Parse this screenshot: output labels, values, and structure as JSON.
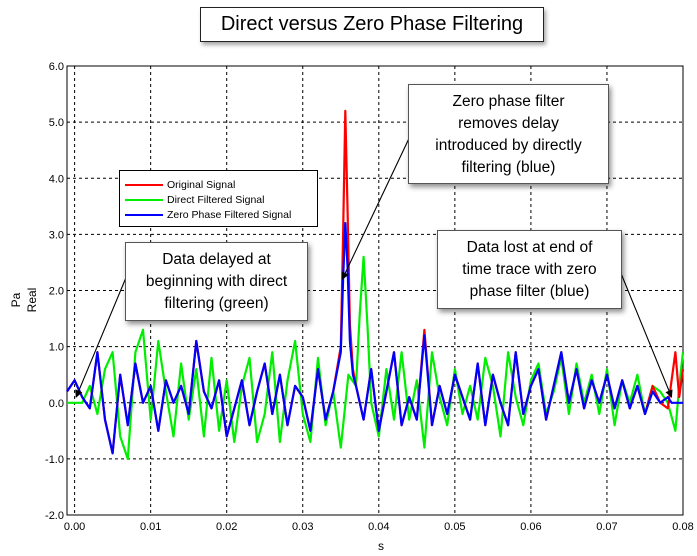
{
  "title": "Direct versus Zero Phase Filtering",
  "chart_data": {
    "type": "line",
    "xlabel": "s",
    "ylabel": [
      "Pa",
      "Real"
    ],
    "xlim": [
      -0.001,
      0.08
    ],
    "ylim": [
      -2.0,
      6.0
    ],
    "x_ticks": [
      "0.00",
      "0.01",
      "0.02",
      "0.03",
      "0.04",
      "0.05",
      "0.06",
      "0.07",
      "0.08"
    ],
    "y_ticks": [
      "-2.0",
      "-1.0",
      "0.0",
      "1.0",
      "2.0",
      "3.0",
      "4.0",
      "5.0",
      "6.0"
    ],
    "grid": true,
    "legend_position": "upper-left",
    "series": [
      {
        "name": "Original Signal",
        "color": "#ff0000",
        "points": [
          [
            -0.001,
            0.2
          ],
          [
            0.0,
            0.4
          ],
          [
            0.001,
            0.1
          ],
          [
            0.002,
            -0.1
          ],
          [
            0.003,
            0.9
          ],
          [
            0.004,
            -0.3
          ],
          [
            0.005,
            -0.9
          ],
          [
            0.006,
            0.5
          ],
          [
            0.007,
            -0.4
          ],
          [
            0.008,
            0.7
          ],
          [
            0.009,
            0.0
          ],
          [
            0.01,
            0.3
          ],
          [
            0.011,
            -0.5
          ],
          [
            0.012,
            0.4
          ],
          [
            0.013,
            0.0
          ],
          [
            0.014,
            0.3
          ],
          [
            0.015,
            -0.2
          ],
          [
            0.016,
            1.1
          ],
          [
            0.017,
            0.2
          ],
          [
            0.018,
            -0.1
          ],
          [
            0.019,
            0.4
          ],
          [
            0.02,
            -0.6
          ],
          [
            0.021,
            -0.1
          ],
          [
            0.022,
            0.4
          ],
          [
            0.023,
            -0.4
          ],
          [
            0.024,
            0.2
          ],
          [
            0.025,
            0.7
          ],
          [
            0.026,
            -0.2
          ],
          [
            0.027,
            0.5
          ],
          [
            0.028,
            -0.4
          ],
          [
            0.029,
            0.3
          ],
          [
            0.03,
            0.1
          ],
          [
            0.031,
            -0.5
          ],
          [
            0.032,
            0.6
          ],
          [
            0.033,
            -0.3
          ],
          [
            0.034,
            0.2
          ],
          [
            0.035,
            1.0
          ],
          [
            0.0353,
            3.0
          ],
          [
            0.0356,
            5.2
          ],
          [
            0.0359,
            3.4
          ],
          [
            0.0362,
            1.4
          ],
          [
            0.0366,
            0.6
          ],
          [
            0.037,
            0.3
          ],
          [
            0.038,
            -0.3
          ],
          [
            0.039,
            0.6
          ],
          [
            0.04,
            -0.5
          ],
          [
            0.041,
            0.2
          ],
          [
            0.042,
            0.9
          ],
          [
            0.043,
            -0.4
          ],
          [
            0.044,
            0.1
          ],
          [
            0.045,
            -0.3
          ],
          [
            0.046,
            1.3
          ],
          [
            0.047,
            -0.4
          ],
          [
            0.048,
            0.3
          ],
          [
            0.049,
            -0.2
          ],
          [
            0.05,
            0.5
          ],
          [
            0.051,
            0.1
          ],
          [
            0.052,
            -0.3
          ],
          [
            0.053,
            0.7
          ],
          [
            0.054,
            -0.4
          ],
          [
            0.055,
            0.5
          ],
          [
            0.056,
            0.0
          ],
          [
            0.057,
            -0.4
          ],
          [
            0.058,
            0.9
          ],
          [
            0.059,
            -0.2
          ],
          [
            0.06,
            0.3
          ],
          [
            0.061,
            0.6
          ],
          [
            0.062,
            -0.3
          ],
          [
            0.063,
            0.3
          ],
          [
            0.064,
            0.9
          ],
          [
            0.065,
            0.0
          ],
          [
            0.066,
            0.6
          ],
          [
            0.067,
            -0.1
          ],
          [
            0.068,
            0.4
          ],
          [
            0.069,
            0.0
          ],
          [
            0.07,
            0.5
          ],
          [
            0.071,
            -0.1
          ],
          [
            0.072,
            0.4
          ],
          [
            0.073,
            -0.1
          ],
          [
            0.074,
            0.3
          ],
          [
            0.075,
            -0.2
          ],
          [
            0.076,
            0.3
          ],
          [
            0.077,
            0.0
          ],
          [
            0.078,
            -0.1
          ],
          [
            0.079,
            0.9
          ],
          [
            0.0795,
            0.1
          ],
          [
            0.08,
            0.6
          ]
        ]
      },
      {
        "name": "Direct Filtered Signal",
        "color": "#00ee00",
        "points": [
          [
            -0.001,
            0.0
          ],
          [
            0.0,
            0.0
          ],
          [
            0.001,
            0.0
          ],
          [
            0.002,
            0.3
          ],
          [
            0.003,
            -0.2
          ],
          [
            0.004,
            0.6
          ],
          [
            0.005,
            0.9
          ],
          [
            0.006,
            -0.6
          ],
          [
            0.007,
            -1.0
          ],
          [
            0.008,
            0.9
          ],
          [
            0.009,
            1.3
          ],
          [
            0.01,
            -0.3
          ],
          [
            0.011,
            1.1
          ],
          [
            0.012,
            0.2
          ],
          [
            0.013,
            -0.6
          ],
          [
            0.014,
            0.7
          ],
          [
            0.015,
            -0.3
          ],
          [
            0.016,
            0.6
          ],
          [
            0.017,
            -0.6
          ],
          [
            0.018,
            0.8
          ],
          [
            0.019,
            -0.5
          ],
          [
            0.02,
            0.4
          ],
          [
            0.021,
            -0.7
          ],
          [
            0.022,
            0.3
          ],
          [
            0.023,
            0.8
          ],
          [
            0.024,
            -0.7
          ],
          [
            0.025,
            -0.2
          ],
          [
            0.026,
            0.9
          ],
          [
            0.027,
            -0.7
          ],
          [
            0.028,
            0.4
          ],
          [
            0.029,
            1.1
          ],
          [
            0.03,
            -0.2
          ],
          [
            0.031,
            -0.7
          ],
          [
            0.032,
            0.8
          ],
          [
            0.033,
            -0.4
          ],
          [
            0.034,
            0.2
          ],
          [
            0.035,
            -0.8
          ],
          [
            0.036,
            0.5
          ],
          [
            0.037,
            0.3
          ],
          [
            0.0375,
            1.6
          ],
          [
            0.038,
            2.6
          ],
          [
            0.0385,
            1.4
          ],
          [
            0.039,
            0.0
          ],
          [
            0.04,
            -0.6
          ],
          [
            0.041,
            0.6
          ],
          [
            0.042,
            -0.3
          ],
          [
            0.043,
            0.9
          ],
          [
            0.044,
            -0.3
          ],
          [
            0.045,
            0.4
          ],
          [
            0.046,
            -0.8
          ],
          [
            0.047,
            0.9
          ],
          [
            0.048,
            0.1
          ],
          [
            0.049,
            -0.4
          ],
          [
            0.05,
            0.6
          ],
          [
            0.051,
            -0.2
          ],
          [
            0.052,
            0.3
          ],
          [
            0.053,
            -0.3
          ],
          [
            0.054,
            0.8
          ],
          [
            0.055,
            0.3
          ],
          [
            0.056,
            -0.6
          ],
          [
            0.057,
            0.9
          ],
          [
            0.058,
            0.1
          ],
          [
            0.059,
            -0.4
          ],
          [
            0.06,
            0.4
          ],
          [
            0.061,
            0.7
          ],
          [
            0.062,
            -0.2
          ],
          [
            0.063,
            0.2
          ],
          [
            0.064,
            0.8
          ],
          [
            0.065,
            -0.2
          ],
          [
            0.066,
            0.7
          ],
          [
            0.067,
            0.0
          ],
          [
            0.068,
            0.5
          ],
          [
            0.069,
            -0.2
          ],
          [
            0.07,
            0.6
          ],
          [
            0.071,
            -0.4
          ],
          [
            0.072,
            0.4
          ],
          [
            0.073,
            0.0
          ],
          [
            0.074,
            0.5
          ],
          [
            0.075,
            -0.2
          ],
          [
            0.076,
            0.3
          ],
          [
            0.077,
            0.2
          ],
          [
            0.078,
            0.0
          ],
          [
            0.079,
            -0.5
          ],
          [
            0.0795,
            0.3
          ],
          [
            0.08,
            0.9
          ]
        ]
      },
      {
        "name": "Zero Phase Filtered Signal",
        "color": "#0000ff",
        "points": [
          [
            -0.001,
            0.2
          ],
          [
            0.0,
            0.4
          ],
          [
            0.001,
            0.1
          ],
          [
            0.002,
            -0.1
          ],
          [
            0.003,
            0.9
          ],
          [
            0.004,
            -0.3
          ],
          [
            0.005,
            -0.9
          ],
          [
            0.006,
            0.5
          ],
          [
            0.007,
            -0.4
          ],
          [
            0.008,
            0.7
          ],
          [
            0.009,
            0.0
          ],
          [
            0.01,
            0.3
          ],
          [
            0.011,
            -0.5
          ],
          [
            0.012,
            0.4
          ],
          [
            0.013,
            0.0
          ],
          [
            0.014,
            0.3
          ],
          [
            0.015,
            -0.2
          ],
          [
            0.016,
            1.1
          ],
          [
            0.017,
            0.2
          ],
          [
            0.018,
            -0.1
          ],
          [
            0.019,
            0.4
          ],
          [
            0.02,
            -0.6
          ],
          [
            0.021,
            -0.1
          ],
          [
            0.022,
            0.4
          ],
          [
            0.023,
            -0.4
          ],
          [
            0.024,
            0.2
          ],
          [
            0.025,
            0.7
          ],
          [
            0.026,
            -0.2
          ],
          [
            0.027,
            0.5
          ],
          [
            0.028,
            -0.4
          ],
          [
            0.029,
            0.3
          ],
          [
            0.03,
            0.1
          ],
          [
            0.031,
            -0.5
          ],
          [
            0.032,
            0.6
          ],
          [
            0.033,
            -0.3
          ],
          [
            0.034,
            0.2
          ],
          [
            0.035,
            0.9
          ],
          [
            0.0353,
            2.2
          ],
          [
            0.0356,
            3.2
          ],
          [
            0.0359,
            2.4
          ],
          [
            0.0362,
            1.1
          ],
          [
            0.0366,
            0.5
          ],
          [
            0.037,
            0.3
          ],
          [
            0.038,
            -0.3
          ],
          [
            0.039,
            0.6
          ],
          [
            0.04,
            -0.5
          ],
          [
            0.041,
            0.2
          ],
          [
            0.042,
            0.9
          ],
          [
            0.043,
            -0.4
          ],
          [
            0.044,
            0.1
          ],
          [
            0.045,
            -0.3
          ],
          [
            0.046,
            1.2
          ],
          [
            0.047,
            -0.4
          ],
          [
            0.048,
            0.3
          ],
          [
            0.049,
            -0.2
          ],
          [
            0.05,
            0.5
          ],
          [
            0.051,
            0.1
          ],
          [
            0.052,
            -0.3
          ],
          [
            0.053,
            0.7
          ],
          [
            0.054,
            -0.4
          ],
          [
            0.055,
            0.5
          ],
          [
            0.056,
            0.0
          ],
          [
            0.057,
            -0.4
          ],
          [
            0.058,
            0.9
          ],
          [
            0.059,
            -0.2
          ],
          [
            0.06,
            0.3
          ],
          [
            0.061,
            0.6
          ],
          [
            0.062,
            -0.3
          ],
          [
            0.063,
            0.3
          ],
          [
            0.064,
            0.9
          ],
          [
            0.065,
            0.0
          ],
          [
            0.066,
            0.6
          ],
          [
            0.067,
            -0.1
          ],
          [
            0.068,
            0.4
          ],
          [
            0.069,
            0.0
          ],
          [
            0.07,
            0.5
          ],
          [
            0.071,
            -0.1
          ],
          [
            0.072,
            0.4
          ],
          [
            0.073,
            -0.1
          ],
          [
            0.074,
            0.3
          ],
          [
            0.075,
            -0.2
          ],
          [
            0.076,
            0.2
          ],
          [
            0.077,
            0.0
          ],
          [
            0.078,
            0.1
          ],
          [
            0.0785,
            0.0
          ],
          [
            0.079,
            0.0
          ],
          [
            0.0795,
            0.0
          ],
          [
            0.08,
            0.0
          ]
        ]
      }
    ]
  },
  "legend": {
    "items": [
      {
        "label": "Original Signal",
        "color": "#ff0000"
      },
      {
        "label": "Direct Filtered Signal",
        "color": "#00ee00"
      },
      {
        "label": "Zero Phase Filtered Signal",
        "color": "#0000ff"
      }
    ]
  },
  "annotations": {
    "zero_phase": {
      "lines": [
        "Zero phase filter",
        "removes delay",
        "introduced by directly",
        "filtering (blue)"
      ],
      "target": [
        0.0352,
        2.2
      ]
    },
    "delayed": {
      "lines": [
        "Data delayed at",
        "beginning with direct",
        "filtering (green)"
      ],
      "target": [
        0.0002,
        0.1
      ]
    },
    "lost": {
      "lines": [
        "Data lost at end of",
        "time trace with zero",
        "phase filter (blue)"
      ],
      "target": [
        0.0785,
        0.1
      ]
    }
  }
}
